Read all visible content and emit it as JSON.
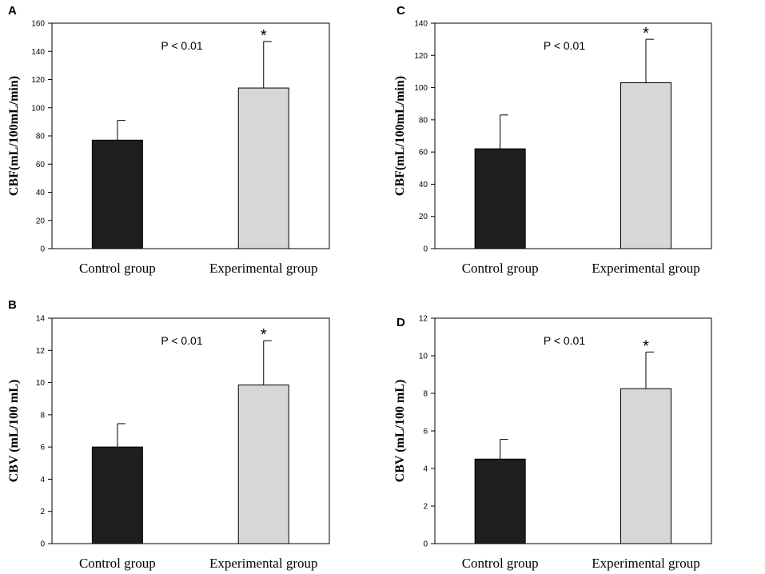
{
  "chart_data": [
    {
      "panel": "A",
      "type": "bar",
      "categories": [
        "Control group",
        "Experimental group"
      ],
      "values": [
        77,
        114
      ],
      "errors": [
        14,
        33
      ],
      "colors": [
        "#1e1e1e",
        "#d7d7d7"
      ],
      "ylabel": "CBF(mL/100mL/min)",
      "xlabel": "",
      "ylim": [
        0,
        160
      ],
      "yticks": [
        0,
        20,
        40,
        60,
        80,
        100,
        120,
        140,
        160
      ],
      "annotation": "P < 0.01",
      "significance": "*"
    },
    {
      "panel": "B",
      "type": "bar",
      "categories": [
        "Control group",
        "Experimental group"
      ],
      "values": [
        6.0,
        9.85
      ],
      "errors": [
        1.45,
        2.75
      ],
      "colors": [
        "#1e1e1e",
        "#d7d7d7"
      ],
      "ylabel": "CBV (mL/100 mL)",
      "xlabel": "",
      "ylim": [
        0,
        14
      ],
      "yticks": [
        0,
        2,
        4,
        6,
        8,
        10,
        12,
        14
      ],
      "annotation": "P < 0.01",
      "significance": "*"
    },
    {
      "panel": "C",
      "type": "bar",
      "categories": [
        "Control group",
        "Experimental group"
      ],
      "values": [
        62,
        103
      ],
      "errors": [
        21,
        27
      ],
      "colors": [
        "#1e1e1e",
        "#d7d7d7"
      ],
      "ylabel": "CBF(mL/100mL/min)",
      "xlabel": "",
      "ylim": [
        0,
        140
      ],
      "yticks": [
        0,
        20,
        40,
        60,
        80,
        100,
        120,
        140
      ],
      "annotation": "P < 0.01",
      "significance": "*"
    },
    {
      "panel": "D",
      "type": "bar",
      "categories": [
        "Control group",
        "Experimental group"
      ],
      "values": [
        4.5,
        8.25
      ],
      "errors": [
        1.05,
        1.95
      ],
      "colors": [
        "#1e1e1e",
        "#d7d7d7"
      ],
      "ylabel": "CBV (mL/100 mL)",
      "xlabel": "",
      "ylim": [
        0,
        12
      ],
      "yticks": [
        0,
        2,
        4,
        6,
        8,
        10,
        12
      ],
      "annotation": "P < 0.01",
      "significance": "*"
    }
  ]
}
